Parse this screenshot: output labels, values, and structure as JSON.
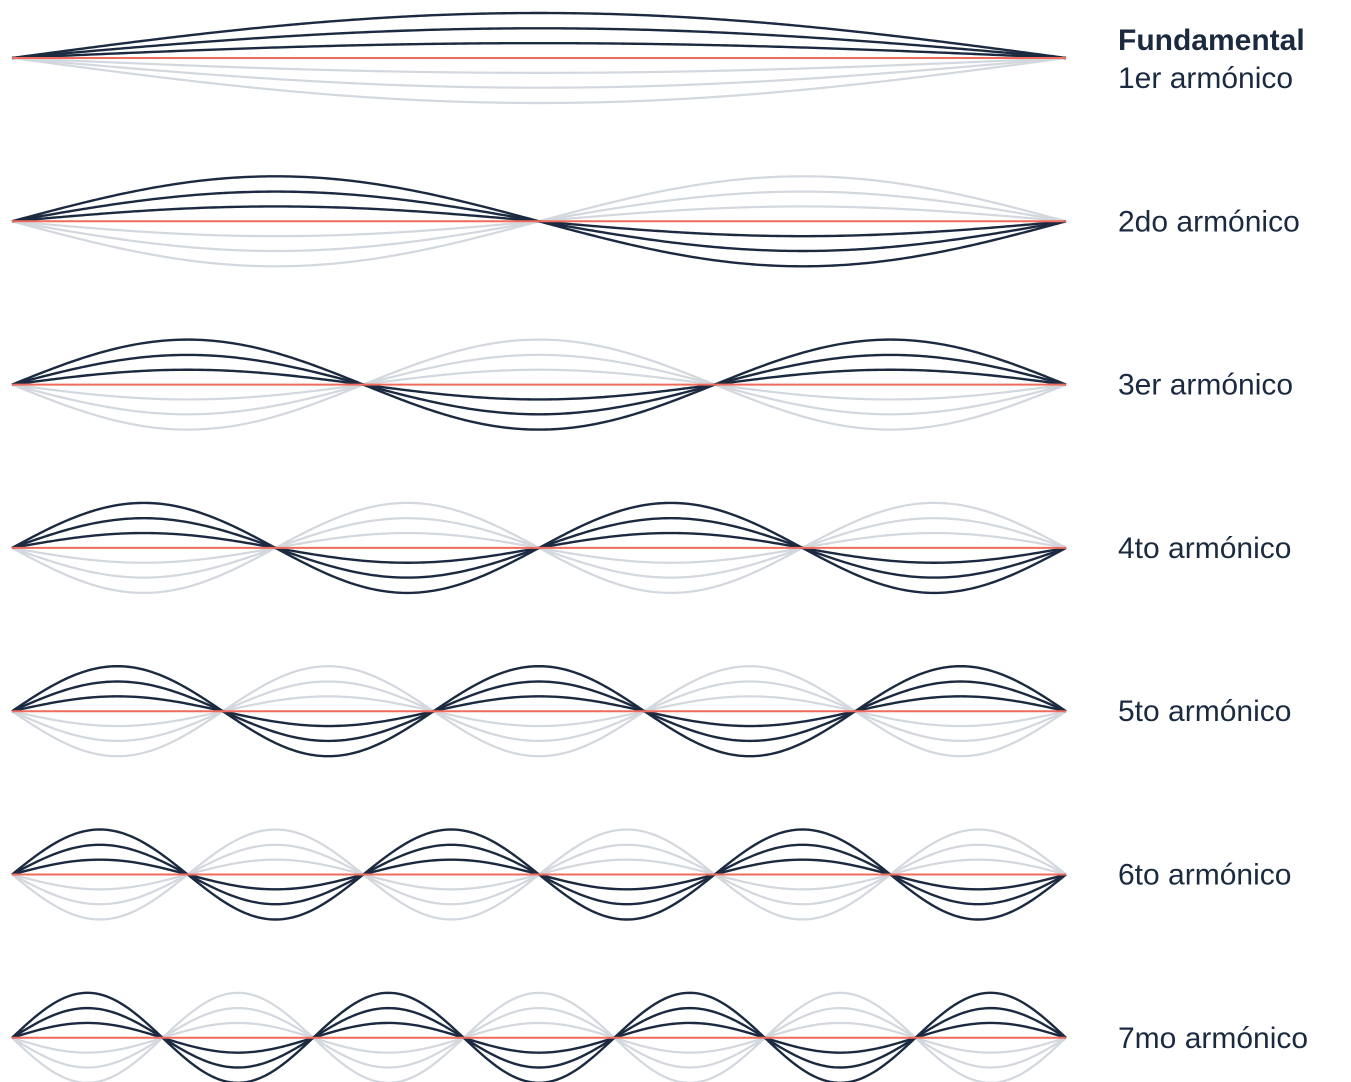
{
  "colors": {
    "baseline": "#ef6b5e",
    "ghost": "#d3d7de",
    "active": "#1b2a40",
    "title": "#1b2a40",
    "label": "#1b2a40"
  },
  "harmonics": [
    {
      "n": 1,
      "title": "Fundamental",
      "label": "1er armónico",
      "active_sign": -1
    },
    {
      "n": 2,
      "title": "",
      "label": "2do armónico",
      "active_sign": -1
    },
    {
      "n": 3,
      "title": "",
      "label": "3er armónico",
      "active_sign": -1
    },
    {
      "n": 4,
      "title": "",
      "label": "4to armónico",
      "active_sign": -1
    },
    {
      "n": 5,
      "title": "",
      "label": "5to armónico",
      "active_sign": -1
    },
    {
      "n": 6,
      "title": "",
      "label": "6to armónico",
      "active_sign": -1
    },
    {
      "n": 7,
      "title": "",
      "label": "7mo armónico",
      "active_sign": -1
    }
  ],
  "amplitude_levels": [
    0.33,
    0.66,
    1.0
  ]
}
